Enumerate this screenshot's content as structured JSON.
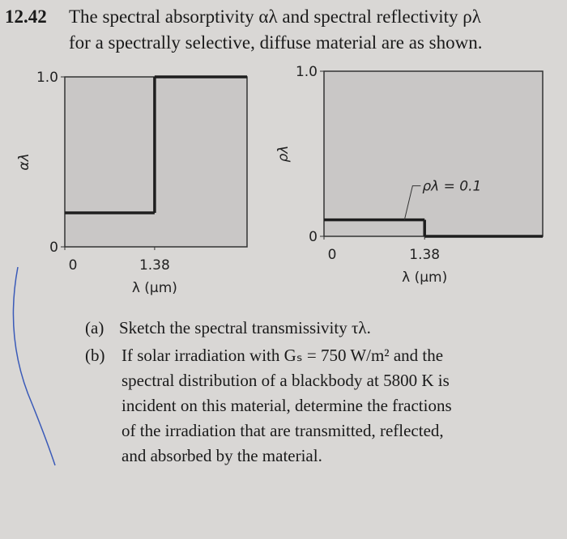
{
  "problem": {
    "number": "12.42",
    "intro_line1": "The spectral absorptivity αλ and spectral reflectivity ρλ",
    "intro_line2": "for a spectrally selective, diffuse material are as shown.",
    "part_a_label": "(a)",
    "part_a": "Sketch the spectral transmissivity τλ.",
    "part_b_label": "(b)",
    "part_b_lines": [
      "If solar irradiation with Gₛ = 750 W/m² and the",
      "spectral distribution of a blackbody at 5800 K is",
      "incident on this material, determine the fractions",
      "of the irradiation that are transmitted, reflected,",
      "and absorbed by the material."
    ]
  },
  "chart_data": [
    {
      "type": "step",
      "y_label": "αλ",
      "x_label": "λ (μm)",
      "x": [
        0,
        1.38
      ],
      "values": [
        0.2,
        1.0
      ],
      "color": "#1e1e1e",
      "xlim": [
        0,
        2.8
      ],
      "ylim": [
        0,
        1
      ],
      "xticks": [
        0,
        1.38
      ],
      "yticks": [
        0,
        {
          "value": 1,
          "label": "1.0"
        }
      ]
    },
    {
      "type": "step",
      "y_label": "ρλ",
      "x_label": "λ (μm)",
      "x": [
        0,
        1.38
      ],
      "values": [
        0.1,
        0
      ],
      "color": "#1e1e1e",
      "xlim": [
        0,
        3.0
      ],
      "ylim": [
        0,
        1
      ],
      "xticks": [
        0,
        1.38
      ],
      "yticks": [
        0,
        {
          "value": 1,
          "label": "1.0"
        }
      ],
      "annotation": "ρλ = 0.1"
    }
  ]
}
